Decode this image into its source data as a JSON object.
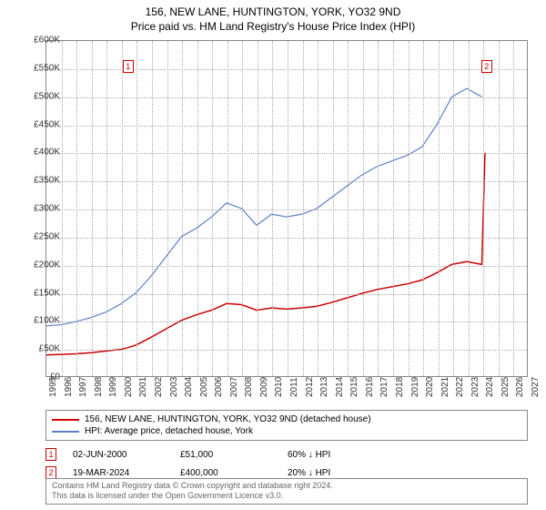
{
  "title": "156, NEW LANE, HUNTINGTON, YORK, YO32 9ND",
  "subtitle": "Price paid vs. HM Land Registry's House Price Index (HPI)",
  "chart": {
    "type": "line",
    "background_color": "#ffffff",
    "grid_color": "#aaaaaa",
    "ylim": [
      0,
      600000
    ],
    "ytick_step": 50000,
    "yticks": [
      "£0",
      "£50K",
      "£100K",
      "£150K",
      "£200K",
      "£250K",
      "£300K",
      "£350K",
      "£400K",
      "£450K",
      "£500K",
      "£550K",
      "£600K"
    ],
    "xlim": [
      1995,
      2027
    ],
    "xticks": [
      1995,
      1996,
      1997,
      1998,
      1999,
      2000,
      2001,
      2002,
      2003,
      2004,
      2005,
      2006,
      2007,
      2008,
      2009,
      2010,
      2011,
      2012,
      2013,
      2014,
      2015,
      2016,
      2017,
      2018,
      2019,
      2020,
      2021,
      2022,
      2023,
      2024,
      2025,
      2026,
      2027
    ],
    "title_fontsize": 12,
    "label_fontsize": 10,
    "series": [
      {
        "name": "price_paid",
        "label": "156, NEW LANE, HUNTINGTON, YORK, YO32 9ND (detached house)",
        "color": "#cc0000",
        "line_width": 1.5,
        "x": [
          1995,
          1996,
          1997,
          1998,
          1999,
          2000,
          2000.42,
          2001,
          2002,
          2003,
          2004,
          2005,
          2006,
          2007,
          2008,
          2009,
          2010,
          2011,
          2012,
          2013,
          2014,
          2015,
          2016,
          2017,
          2018,
          2019,
          2020,
          2021,
          2022,
          2023,
          2024,
          2024.21
        ],
        "y": [
          38000,
          39000,
          40000,
          42000,
          45000,
          48000,
          51000,
          56000,
          70000,
          85000,
          100000,
          110000,
          118000,
          130000,
          128000,
          118000,
          122000,
          120000,
          122000,
          125000,
          132000,
          140000,
          148000,
          155000,
          160000,
          165000,
          172000,
          185000,
          200000,
          205000,
          200000,
          400000
        ]
      },
      {
        "name": "hpi",
        "label": "HPI: Average price, detached house, York",
        "color": "#5b7fc7",
        "line_width": 1.2,
        "x": [
          1995,
          1996,
          1997,
          1998,
          1999,
          2000,
          2001,
          2002,
          2003,
          2004,
          2005,
          2006,
          2007,
          2008,
          2009,
          2010,
          2011,
          2012,
          2013,
          2014,
          2015,
          2016,
          2017,
          2018,
          2019,
          2020,
          2021,
          2022,
          2023,
          2024
        ],
        "y": [
          90000,
          92000,
          98000,
          105000,
          115000,
          130000,
          150000,
          180000,
          215000,
          250000,
          265000,
          285000,
          310000,
          300000,
          270000,
          290000,
          285000,
          290000,
          300000,
          320000,
          340000,
          360000,
          375000,
          385000,
          395000,
          410000,
          450000,
          500000,
          515000,
          500000
        ]
      }
    ],
    "markers": [
      {
        "n": "1",
        "x": 2000.42,
        "y": 555000,
        "color": "#cc0000"
      },
      {
        "n": "2",
        "x": 2024.21,
        "y": 555000,
        "color": "#cc0000"
      }
    ]
  },
  "sales": [
    {
      "n": "1",
      "color": "#cc0000",
      "date": "02-JUN-2000",
      "price": "£51,000",
      "delta": "60% ↓ HPI"
    },
    {
      "n": "2",
      "color": "#cc0000",
      "date": "19-MAR-2024",
      "price": "£400,000",
      "delta": "20% ↓ HPI"
    }
  ],
  "footer": {
    "line1": "Contains HM Land Registry data © Crown copyright and database right 2024.",
    "line2": "This data is licensed under the Open Government Licence v3.0."
  }
}
